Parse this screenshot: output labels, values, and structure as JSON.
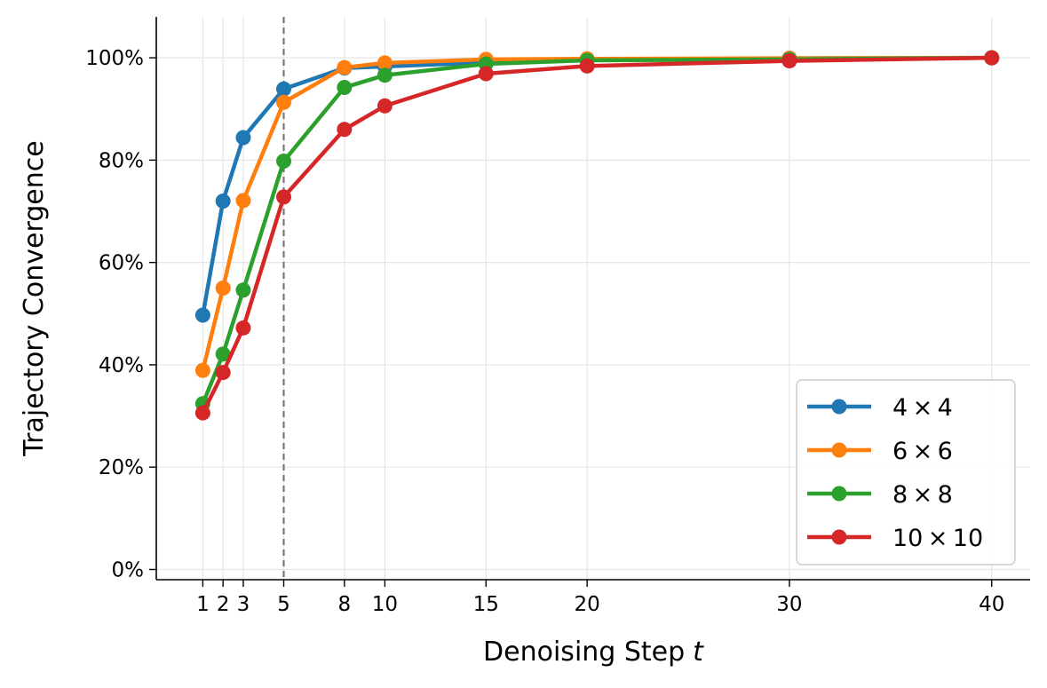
{
  "chart_data": {
    "type": "line",
    "title": "",
    "xlabel": "Denoising Step",
    "xlabel_var": "t",
    "ylabel": "Trajectory Convergence",
    "x": [
      1,
      2,
      3,
      5,
      8,
      10,
      15,
      20,
      30,
      40
    ],
    "x_ticks": [
      1,
      2,
      3,
      5,
      8,
      10,
      15,
      20,
      30,
      40
    ],
    "y_ticks": [
      0,
      20,
      40,
      60,
      80,
      100
    ],
    "y_tick_labels": [
      "0%",
      "20%",
      "40%",
      "60%",
      "80%",
      "100%"
    ],
    "xlim": [
      -1.3,
      41.9
    ],
    "ylim": [
      -2,
      108
    ],
    "grid": true,
    "legend_position": "lower-right",
    "reference_line": {
      "x": 5,
      "style": "dashed",
      "color": "#777777"
    },
    "series": [
      {
        "name": "4 × 4",
        "color": "#1f77b4",
        "values": [
          49.7,
          72.0,
          84.4,
          93.9,
          98.0,
          98.3,
          99.1,
          99.6,
          99.9,
          100.0
        ]
      },
      {
        "name": "6 × 6",
        "color": "#ff7f0e",
        "values": [
          38.9,
          55.0,
          72.1,
          91.3,
          98.1,
          99.0,
          99.7,
          99.8,
          99.9,
          100.0
        ]
      },
      {
        "name": "8 × 8",
        "color": "#2ca02c",
        "values": [
          32.4,
          42.1,
          54.6,
          79.8,
          94.2,
          96.6,
          98.8,
          99.5,
          99.7,
          100.0
        ]
      },
      {
        "name": "10 × 10",
        "color": "#d62728",
        "values": [
          30.6,
          38.5,
          47.2,
          72.8,
          86.0,
          90.6,
          96.9,
          98.4,
          99.4,
          100.0
        ]
      }
    ]
  }
}
